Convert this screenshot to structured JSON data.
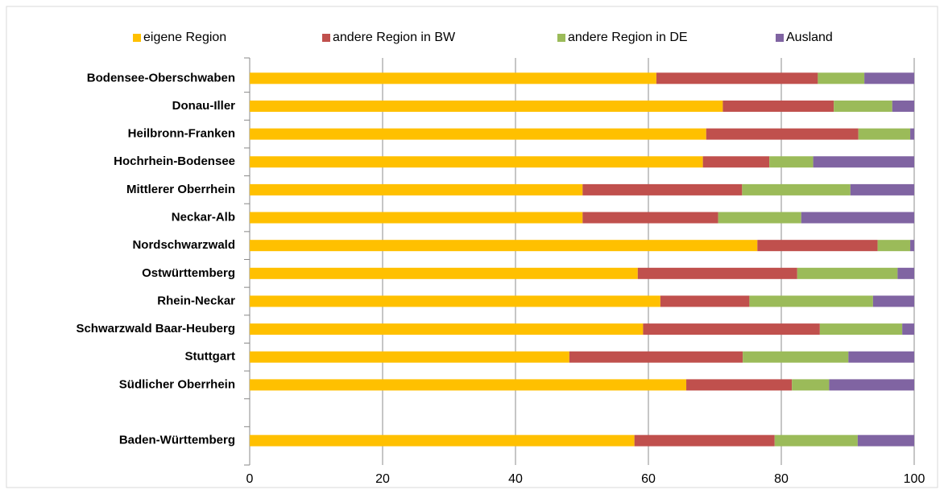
{
  "chart_data": {
    "type": "stacked-bar-horizontal",
    "categories": [
      "Bodensee-Oberschwaben",
      "Donau-Iller",
      "Heilbronn-Franken",
      "Hochrhein-Bodensee",
      "Mittlerer Oberrhein",
      "Neckar-Alb",
      "Nordschwarzwald",
      "Ostwürttemberg",
      "Rhein-Neckar",
      "Schwarzwald Baar-Heuberg",
      "Stuttgart",
      "Südlicher Oberrhein",
      null,
      "Baden-Württemberg"
    ],
    "series": [
      {
        "name": "eigene Region",
        "color": "#ffc000",
        "values": [
          61.2,
          71.2,
          68.7,
          68.2,
          50.1,
          50.1,
          76.4,
          58.4,
          61.8,
          59.2,
          48.1,
          65.7,
          null,
          57.9
        ]
      },
      {
        "name": "andere Region in BW",
        "color": "#c0504d",
        "values": [
          24.3,
          16.7,
          22.9,
          10.0,
          24.0,
          20.4,
          18.1,
          24.0,
          13.4,
          26.6,
          26.1,
          15.9,
          null,
          21.1
        ]
      },
      {
        "name": "andere Region in DE",
        "color": "#9bbb59",
        "values": [
          7.0,
          8.8,
          7.8,
          6.6,
          16.3,
          12.5,
          4.9,
          15.1,
          18.6,
          12.4,
          15.9,
          5.6,
          null,
          12.5
        ]
      },
      {
        "name": "Ausland",
        "color": "#8064a2",
        "values": [
          7.5,
          3.3,
          0.6,
          15.2,
          9.6,
          17.0,
          0.6,
          2.5,
          6.2,
          1.8,
          9.9,
          12.8,
          null,
          8.5
        ]
      }
    ],
    "xlim": [
      0,
      100
    ],
    "xticks": [
      0,
      20,
      40,
      60,
      80,
      100
    ],
    "grid": true,
    "legend": "top"
  }
}
